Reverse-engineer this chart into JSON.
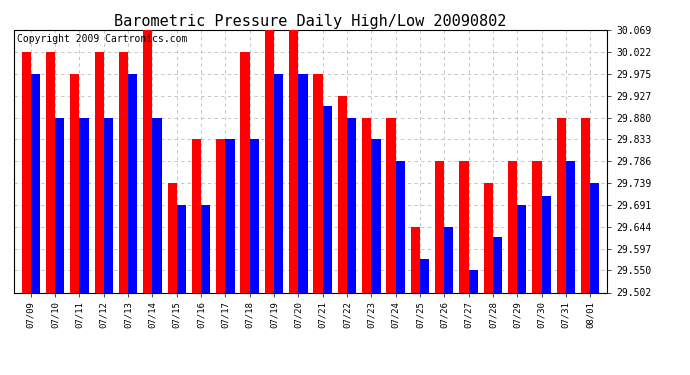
{
  "title": "Barometric Pressure Daily High/Low 20090802",
  "copyright": "Copyright 2009 Cartronics.com",
  "dates": [
    "07/09",
    "07/10",
    "07/11",
    "07/12",
    "07/13",
    "07/14",
    "07/15",
    "07/16",
    "07/17",
    "07/18",
    "07/19",
    "07/20",
    "07/21",
    "07/22",
    "07/23",
    "07/24",
    "07/25",
    "07/26",
    "07/27",
    "07/28",
    "07/29",
    "07/30",
    "07/31",
    "08/01"
  ],
  "highs": [
    30.022,
    30.022,
    29.975,
    30.022,
    30.022,
    30.069,
    29.739,
    29.833,
    29.833,
    30.022,
    30.069,
    30.069,
    29.975,
    29.927,
    29.88,
    29.88,
    29.644,
    29.786,
    29.786,
    29.739,
    29.786,
    29.786,
    29.88,
    29.88
  ],
  "lows": [
    29.975,
    29.88,
    29.88,
    29.88,
    29.975,
    29.88,
    29.691,
    29.691,
    29.833,
    29.833,
    29.975,
    29.975,
    29.904,
    29.88,
    29.833,
    29.786,
    29.574,
    29.644,
    29.55,
    29.621,
    29.691,
    29.71,
    29.786,
    29.739
  ],
  "high_color": "#ff0000",
  "low_color": "#0000ff",
  "bg_color": "#ffffff",
  "grid_color": "#bbbbbb",
  "ylim_min": 29.502,
  "ylim_max": 30.069,
  "yticks": [
    29.502,
    29.55,
    29.597,
    29.644,
    29.691,
    29.739,
    29.786,
    29.833,
    29.88,
    29.927,
    29.975,
    30.022,
    30.069
  ],
  "title_fontsize": 11,
  "copyright_fontsize": 7,
  "tick_fontsize": 7,
  "xtick_fontsize": 6.5
}
